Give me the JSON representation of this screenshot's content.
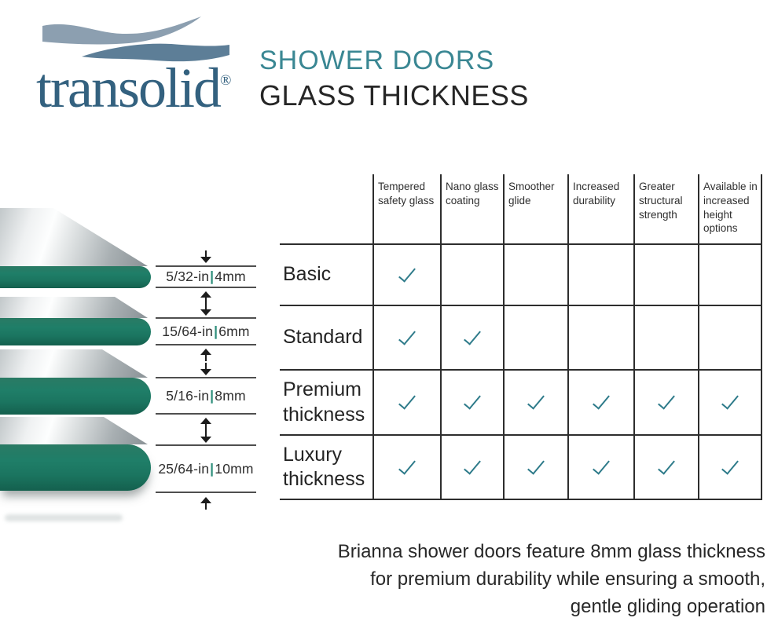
{
  "logo": {
    "brand": "transolid",
    "registered": "®"
  },
  "header": {
    "title_line1": "SHOWER DOORS",
    "title_line2": "GLASS THICKNESS"
  },
  "measurements": {
    "separator": "|",
    "items": [
      {
        "inches": "5/32-in",
        "mm": "4mm"
      },
      {
        "inches": "15/64-in",
        "mm": "6mm"
      },
      {
        "inches": "5/16-in",
        "mm": "8mm"
      },
      {
        "inches": "25/64-in",
        "mm": "10mm"
      }
    ]
  },
  "table": {
    "columns": [
      "Tempered safety glass",
      "Nano glass coating",
      "Smoother glide",
      "Increased durability",
      "Greater structural strength",
      "Available in increased height options"
    ],
    "rows": [
      {
        "label": "Basic",
        "checks": [
          true,
          false,
          false,
          false,
          false,
          false
        ]
      },
      {
        "label": "Standard",
        "checks": [
          true,
          true,
          false,
          false,
          false,
          false
        ]
      },
      {
        "label": "Premium thickness",
        "checks": [
          true,
          true,
          true,
          true,
          true,
          true
        ]
      },
      {
        "label": "Luxury thickness",
        "checks": [
          true,
          true,
          true,
          true,
          true,
          true
        ]
      }
    ]
  },
  "footer": {
    "lines": [
      "Brianna shower doors feature 8mm glass thickness",
      "for premium durability while ensuring a smooth,",
      "gentle gliding operation"
    ]
  },
  "colors": {
    "accent_teal": "#3A8793",
    "check_teal": "#2E7B8A",
    "logo_blue": "#33617F",
    "wave_light": "#8C9FB0",
    "wave_dark": "#5D7E97",
    "glass_green": "#1F7E68",
    "text_dark": "#262626"
  }
}
